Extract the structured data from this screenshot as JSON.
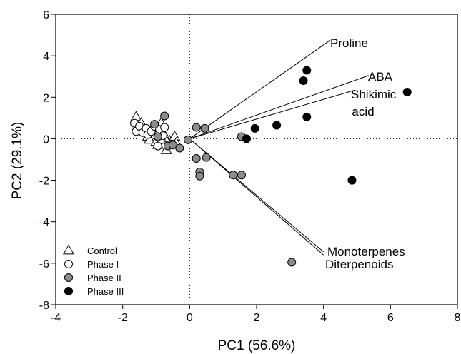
{
  "chart_data": {
    "type": "scatter",
    "xlabel": "PC1 (56.6%)",
    "ylabel": "PC2 (29.1%)",
    "xlim": [
      -4,
      8
    ],
    "ylim": [
      -8,
      6
    ],
    "xticks": [
      -4,
      -2,
      0,
      2,
      4,
      6,
      8
    ],
    "yticks": [
      -8,
      -6,
      -4,
      -2,
      0,
      2,
      4,
      6
    ],
    "reference_lines": {
      "x": 0,
      "y": 0,
      "style": "dotted"
    },
    "grid": false,
    "legend_position": "bottom-left",
    "series": [
      {
        "name": "Control",
        "marker": "open-triangle",
        "color": "#ffffff",
        "points": [
          [
            -1.6,
            1.05
          ],
          [
            -1.45,
            0.75
          ],
          [
            -1.5,
            0.5
          ],
          [
            -1.3,
            0.35
          ],
          [
            -1.25,
            0.1
          ],
          [
            -1.2,
            -0.05
          ],
          [
            -1.05,
            0.5
          ],
          [
            -0.95,
            -0.3
          ],
          [
            -0.85,
            0.75
          ],
          [
            -0.8,
            0.3
          ],
          [
            -0.7,
            -0.55
          ],
          [
            -0.6,
            -0.1
          ],
          [
            -0.45,
            0.1
          ],
          [
            -0.4,
            -0.2
          ],
          [
            -1.0,
            -0.15
          ],
          [
            -0.75,
            0.05
          ]
        ]
      },
      {
        "name": "Phase I",
        "marker": "open-circle",
        "color": "#ffffff",
        "points": [
          [
            -1.65,
            0.75
          ],
          [
            -1.6,
            0.35
          ],
          [
            -1.5,
            0.6
          ],
          [
            -1.4,
            0.3
          ],
          [
            -1.3,
            0.5
          ],
          [
            -1.25,
            0.2
          ],
          [
            -1.15,
            0.35
          ],
          [
            -1.05,
            0.6
          ],
          [
            -0.95,
            0.1
          ],
          [
            -0.9,
            0.45
          ],
          [
            -0.85,
            -0.05
          ],
          [
            -0.8,
            0.15
          ],
          [
            -0.75,
            0.55
          ],
          [
            -0.95,
            -0.35
          ]
        ]
      },
      {
        "name": "Phase II",
        "marker": "filled-circle",
        "color": "#8c8c8c",
        "points": [
          [
            -1.05,
            0.7
          ],
          [
            -0.75,
            1.1
          ],
          [
            -0.95,
            0.1
          ],
          [
            -0.65,
            -0.35
          ],
          [
            -0.5,
            -0.3
          ],
          [
            -0.3,
            -0.45
          ],
          [
            -0.05,
            -0.05
          ],
          [
            0.2,
            0.55
          ],
          [
            0.45,
            0.5
          ],
          [
            0.2,
            -0.95
          ],
          [
            0.3,
            -1.6
          ],
          [
            0.3,
            -1.8
          ],
          [
            0.5,
            -0.9
          ],
          [
            1.3,
            -1.75
          ],
          [
            1.55,
            -1.75
          ],
          [
            1.55,
            0.1
          ],
          [
            3.05,
            -5.95
          ]
        ]
      },
      {
        "name": "Phase III",
        "marker": "filled-circle",
        "color": "#000000",
        "points": [
          [
            1.7,
            0.0
          ],
          [
            1.95,
            0.5
          ],
          [
            2.6,
            0.65
          ],
          [
            3.4,
            2.8
          ],
          [
            3.5,
            3.3
          ],
          [
            3.5,
            1.05
          ],
          [
            4.85,
            -2.0
          ],
          [
            6.5,
            2.25
          ]
        ]
      }
    ],
    "vectors": [
      {
        "label": "Proline",
        "end": [
          4.2,
          4.75
        ]
      },
      {
        "label": "ABA",
        "end": [
          5.35,
          3.05
        ]
      },
      {
        "label": "Shikimic acid",
        "end": [
          4.95,
          2.35
        ]
      },
      {
        "label": "Monoterpenes",
        "end": [
          4.0,
          -5.45
        ]
      },
      {
        "label": "Diterpenoids",
        "end": [
          4.0,
          -5.6
        ]
      }
    ],
    "vector_label_lines": [
      {
        "text": "Proline"
      },
      {
        "text": "ABA"
      },
      {
        "text": "Shikimic"
      },
      {
        "text": "acid"
      },
      {
        "text": "Monoterpenes"
      },
      {
        "text": "Diterpenoids"
      }
    ]
  }
}
